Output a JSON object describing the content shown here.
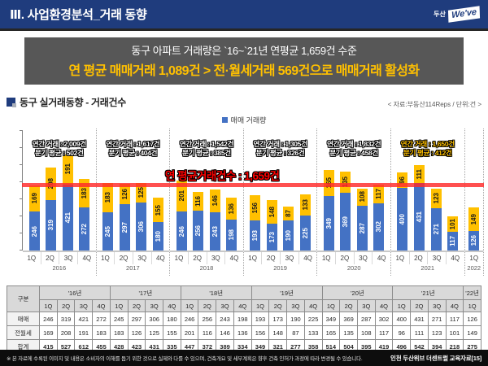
{
  "header": {
    "title": "Ⅲ. 사업환경분석_거래 동향",
    "logo_prefix": "두산",
    "logo_text": "We've"
  },
  "summary": {
    "line1": "동구 아파트 거래량은 `16~`21년 연평균 1,659건 수준",
    "line2": "연 평균 매매거래 1,089건 > 전·월세거래 569건으로 매매거래 활성화"
  },
  "section": {
    "title": "동구 실거래동향 - 거래건수",
    "source": "< 자료:부동산114Reps / 단위:건 >",
    "legend": "매매 거래량"
  },
  "chart_data": {
    "type": "bar",
    "stacked": true,
    "ylim": [
      0,
      620
    ],
    "series": [
      {
        "name": "매매",
        "color": "#4472C4"
      },
      {
        "name": "전월세",
        "color": "#FFC000"
      }
    ],
    "avg_line": {
      "label": "연 평균거래건수 : 1,659건",
      "value": 415,
      "color": "#FF2A2A"
    },
    "groups": [
      {
        "year": "2016",
        "quarters": [
          "1Q",
          "2Q",
          "3Q",
          "4Q"
        ],
        "sale": [
          246,
          319,
          421,
          272
        ],
        "rent": [
          169,
          208,
          191,
          183
        ],
        "annotation": {
          "line1": "연간 거래 : 2,009건",
          "line2": "분기 평균 : 502건"
        },
        "highlight": false
      },
      {
        "year": "2017",
        "quarters": [
          "1Q",
          "2Q",
          "3Q",
          "4Q"
        ],
        "sale": [
          245,
          297,
          306,
          180
        ],
        "rent": [
          183,
          126,
          125,
          155
        ],
        "annotation": {
          "line1": "연간 거래 : 1,617건",
          "line2": "분기 평균 : 404건"
        },
        "highlight": false
      },
      {
        "year": "2018",
        "quarters": [
          "1Q",
          "2Q",
          "3Q",
          "4Q"
        ],
        "sale": [
          246,
          256,
          243,
          198
        ],
        "rent": [
          201,
          116,
          146,
          136
        ],
        "annotation": {
          "line1": "연간 거래 : 1,542건",
          "line2": "분기 평균 : 385건"
        },
        "highlight": false
      },
      {
        "year": "2019",
        "quarters": [
          "1Q",
          "2Q",
          "3Q",
          "4Q"
        ],
        "sale": [
          193,
          173,
          190,
          225
        ],
        "rent": [
          156,
          148,
          87,
          133
        ],
        "annotation": {
          "line1": "연간 거래 : 1,305건",
          "line2": "분기 평균 : 326건"
        },
        "highlight": false
      },
      {
        "year": "2020",
        "quarters": [
          "1Q",
          "2Q",
          "3Q",
          "4Q"
        ],
        "sale": [
          349,
          369,
          287,
          302
        ],
        "rent": [
          165,
          135,
          108,
          117
        ],
        "annotation": {
          "line1": "연간 거래 : 1,832건",
          "line2": "분기 평균 : 458건"
        },
        "highlight": false
      },
      {
        "year": "2021",
        "quarters": [
          "1Q",
          "2Q",
          "3Q",
          "4Q"
        ],
        "sale": [
          400,
          431,
          271,
          117
        ],
        "rent": [
          96,
          111,
          123,
          101
        ],
        "annotation": {
          "line1": "연간 거래 : 1,650건",
          "line2": "분기 평균 : 412건"
        },
        "highlight": true
      },
      {
        "year": "2022",
        "quarters": [
          "1Q"
        ],
        "sale": [
          126
        ],
        "rent": [
          149
        ],
        "annotation": null,
        "highlight": false
      }
    ]
  },
  "table": {
    "corner_label": "구분",
    "year_headers": [
      {
        "label": "'16년",
        "span": 4
      },
      {
        "label": "'17년",
        "span": 4
      },
      {
        "label": "'18년",
        "span": 4
      },
      {
        "label": "'19년",
        "span": 4
      },
      {
        "label": "'20년",
        "span": 4
      },
      {
        "label": "'21년",
        "span": 4
      },
      {
        "label": "'22년",
        "span": 1
      }
    ],
    "quarter_headers": [
      "1Q",
      "2Q",
      "3Q",
      "4Q",
      "1Q",
      "2Q",
      "3Q",
      "4Q",
      "1Q",
      "2Q",
      "3Q",
      "4Q",
      "1Q",
      "2Q",
      "3Q",
      "4Q",
      "1Q",
      "2Q",
      "3Q",
      "4Q",
      "1Q",
      "2Q",
      "3Q",
      "4Q",
      "1Q"
    ],
    "rows": [
      {
        "label": "매매",
        "bold": false,
        "values": [
          246,
          319,
          421,
          272,
          245,
          297,
          306,
          180,
          246,
          256,
          243,
          198,
          193,
          173,
          190,
          225,
          349,
          369,
          287,
          302,
          400,
          431,
          271,
          117,
          126
        ]
      },
      {
        "label": "전월세",
        "bold": false,
        "values": [
          169,
          208,
          191,
          183,
          183,
          126,
          125,
          155,
          201,
          116,
          146,
          136,
          156,
          148,
          87,
          133,
          165,
          135,
          108,
          117,
          96,
          111,
          123,
          101,
          149
        ]
      },
      {
        "label": "합계",
        "bold": true,
        "values": [
          415,
          527,
          612,
          455,
          428,
          423,
          431,
          335,
          447,
          372,
          389,
          334,
          349,
          321,
          277,
          358,
          514,
          504,
          395,
          419,
          496,
          542,
          394,
          218,
          275
        ]
      }
    ]
  },
  "footer": {
    "disclaimer": "※ 본 자료에 수록된 이미지 및 내용은 소비자의 이해를 돕기 위한 것으로 실제와 다를 수 있으며, 건축개요 및 세부계획은 향후 건축 인허가 과정에 따라 변경될 수 있습니다.",
    "page_label": "인천 두산위브 더센트럴 교육자료[15]"
  },
  "colors": {
    "header_navy": "#1F3C7D",
    "summary_gray": "#575757",
    "accent_yellow": "#FFC000",
    "bar_blue": "#4472C4",
    "avg_line_red": "#FF2A2A"
  }
}
